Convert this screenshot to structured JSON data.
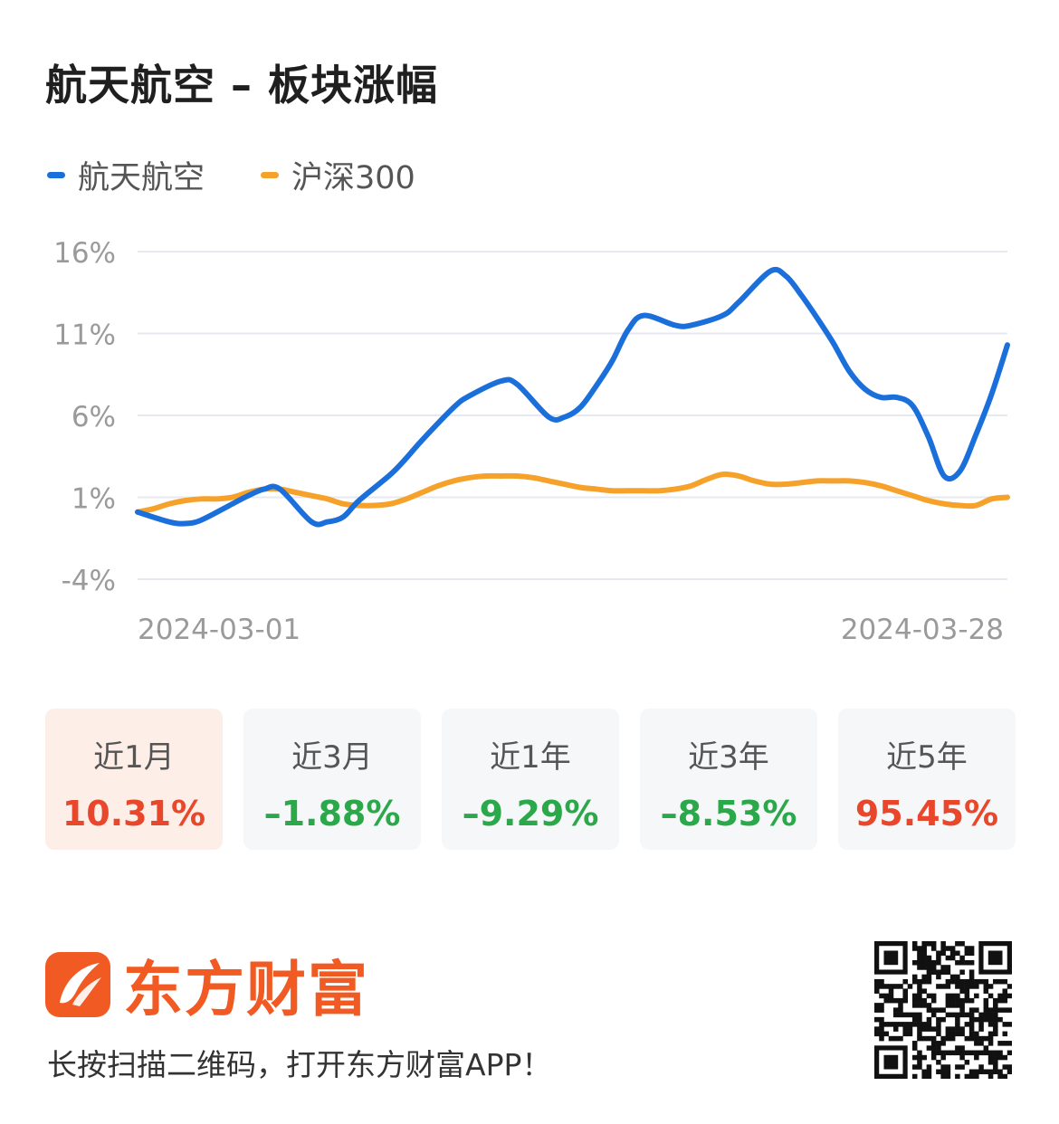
{
  "title": "航天航空 – 板块涨幅",
  "legend": [
    {
      "label": "航天航空",
      "color": "#1a6fdb"
    },
    {
      "label": "沪深300",
      "color": "#f5a12a"
    }
  ],
  "chart_data": {
    "type": "line",
    "y_ticks": [
      "16%",
      "11%",
      "6%",
      "1%",
      "-4%"
    ],
    "y_tick_values": [
      16,
      11,
      6,
      1,
      -4
    ],
    "ylim": [
      -4,
      16
    ],
    "x_tick_labels": [
      "2024-03-01",
      "2024-03-28"
    ],
    "x_index_range": [
      0,
      55
    ],
    "grid": true,
    "series": [
      {
        "name": "航天航空",
        "color": "#1a6fdb",
        "x": [
          0,
          2,
          3,
          4,
          6,
          7,
          8,
          9,
          11,
          12,
          13,
          14,
          16,
          17,
          18,
          20,
          21,
          23,
          24,
          26,
          27,
          28,
          29,
          30,
          31,
          32,
          34,
          35,
          37,
          38,
          40,
          41,
          42,
          43,
          44,
          45,
          46,
          47,
          48,
          49,
          50,
          51,
          52,
          53,
          54,
          55
        ],
        "values": [
          0.1,
          -0.5,
          -0.6,
          -0.4,
          0.6,
          1.1,
          1.5,
          1.5,
          -0.5,
          -0.5,
          -0.2,
          0.8,
          2.4,
          3.4,
          4.5,
          6.5,
          7.2,
          8.1,
          7.9,
          5.9,
          5.9,
          6.5,
          7.8,
          9.3,
          11.2,
          12.1,
          11.5,
          11.5,
          12.1,
          12.9,
          14.8,
          14.5,
          13.3,
          11.9,
          10.4,
          8.7,
          7.6,
          7.1,
          7.1,
          6.6,
          4.7,
          2.3,
          2.6,
          4.8,
          7.3,
          10.3
        ]
      },
      {
        "name": "沪深300",
        "color": "#f5a12a",
        "x": [
          0,
          1,
          2,
          3,
          4,
          5,
          6,
          7,
          8,
          9,
          10,
          11,
          12,
          13,
          14,
          15,
          16,
          17,
          18,
          19,
          20,
          21,
          22,
          23,
          24,
          25,
          26,
          27,
          28,
          29,
          30,
          31,
          32,
          33,
          34,
          35,
          36,
          37,
          38,
          39,
          40,
          41,
          42,
          43,
          44,
          45,
          46,
          47,
          48,
          49,
          50,
          51,
          52,
          53,
          54,
          55
        ],
        "values": [
          0.1,
          0.3,
          0.6,
          0.8,
          0.9,
          0.9,
          1.0,
          1.3,
          1.5,
          1.5,
          1.3,
          1.1,
          0.9,
          0.6,
          0.5,
          0.5,
          0.6,
          0.9,
          1.3,
          1.7,
          2.0,
          2.2,
          2.3,
          2.3,
          2.3,
          2.2,
          2.0,
          1.8,
          1.6,
          1.5,
          1.4,
          1.4,
          1.4,
          1.4,
          1.5,
          1.7,
          2.1,
          2.4,
          2.3,
          2.0,
          1.8,
          1.8,
          1.9,
          2.0,
          2.0,
          2.0,
          1.9,
          1.7,
          1.4,
          1.1,
          0.8,
          0.6,
          0.5,
          0.5,
          0.9,
          1.0
        ]
      }
    ]
  },
  "periods": [
    {
      "label": "近1月",
      "value": "10.31%",
      "color": "#e8472b",
      "active": true
    },
    {
      "label": "近3月",
      "value": "–1.88%",
      "color": "#2aa84a",
      "active": false
    },
    {
      "label": "近1年",
      "value": "–9.29%",
      "color": "#2aa84a",
      "active": false
    },
    {
      "label": "近3年",
      "value": "–8.53%",
      "color": "#2aa84a",
      "active": false
    },
    {
      "label": "近5年",
      "value": "95.45%",
      "color": "#e8472b",
      "active": false
    }
  ],
  "brand": {
    "name": "东方财富",
    "color": "#f15a22"
  },
  "footer": {
    "text": "长按扫描二维码，打开东方财富APP！"
  }
}
